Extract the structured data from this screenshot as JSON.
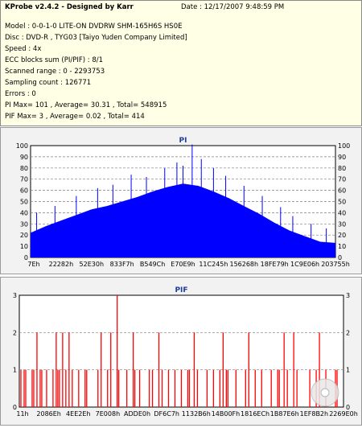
{
  "header": {
    "title": "KProbe v2.4.2 - Designed by Karr",
    "date": "Date : 12/17/2007 9:48:59 PM",
    "lines": [
      "Model : 0-0-1-0 LITE-ON DVDRW SHM-165H6S HS0E",
      "Disc : DVD-R , TYG03 [Taiyo Yuden Company Limited]",
      "Speed : 4x",
      "ECC blocks sum (PI/PIF) : 8/1",
      "Scanned range : 0 - 2293753",
      "Sampling count : 126771",
      "Errors : 0",
      "PI Max= 101 , Average= 30.31 , Total= 548915",
      "PIF Max= 3 , Average= 0.02 , Total= 414"
    ]
  },
  "chart_data": [
    {
      "type": "area",
      "title": "PI",
      "color": "#0000ff",
      "ylim": [
        0,
        100
      ],
      "yticks": [
        0,
        10,
        20,
        30,
        40,
        50,
        60,
        70,
        80,
        90,
        100
      ],
      "xticks": [
        "7Eh",
        "22282h",
        "52E30h",
        "833F7h",
        "B549Ch",
        "E70E9h",
        "11C245h",
        "156268h",
        "18FE79h",
        "1C9E06h",
        "203755h"
      ],
      "grid": true,
      "x": [
        0,
        0.05,
        0.1,
        0.15,
        0.2,
        0.25,
        0.3,
        0.35,
        0.4,
        0.45,
        0.5,
        0.55,
        0.6,
        0.65,
        0.7,
        0.75,
        0.8,
        0.85,
        0.9,
        0.95,
        1.0
      ],
      "values": [
        22,
        28,
        33,
        38,
        43,
        46,
        50,
        54,
        59,
        63,
        66,
        64,
        59,
        53,
        46,
        39,
        31,
        24,
        19,
        14,
        13
      ],
      "peaks": [
        [
          0.02,
          40
        ],
        [
          0.08,
          46
        ],
        [
          0.15,
          55
        ],
        [
          0.22,
          62
        ],
        [
          0.27,
          65
        ],
        [
          0.33,
          74
        ],
        [
          0.38,
          72
        ],
        [
          0.44,
          80
        ],
        [
          0.48,
          85
        ],
        [
          0.5,
          82
        ],
        [
          0.53,
          101
        ],
        [
          0.56,
          88
        ],
        [
          0.6,
          80
        ],
        [
          0.64,
          73
        ],
        [
          0.7,
          64
        ],
        [
          0.76,
          55
        ],
        [
          0.82,
          45
        ],
        [
          0.86,
          37
        ],
        [
          0.92,
          30
        ],
        [
          0.97,
          26
        ]
      ]
    },
    {
      "type": "bar",
      "title": "PIF",
      "color": "#ff0000",
      "ylim": [
        0,
        3
      ],
      "yticks": [
        0,
        1,
        2,
        3
      ],
      "xticks": [
        "11h",
        "2086Eh",
        "4EE2Eh",
        "7E008h",
        "ADDE0h",
        "DF6C7h",
        "1132B6h",
        "14B00Fh",
        "1816ECh",
        "1B87E6h",
        "1EF8B2h",
        "2269E0h"
      ],
      "grid": true,
      "ones": [
        0.0,
        0.01,
        0.015,
        0.035,
        0.04,
        0.06,
        0.065,
        0.08,
        0.1,
        0.115,
        0.12,
        0.14,
        0.16,
        0.18,
        0.2,
        0.205,
        0.24,
        0.27,
        0.3,
        0.305,
        0.33,
        0.355,
        0.37,
        0.4,
        0.41,
        0.44,
        0.46,
        0.48,
        0.5,
        0.52,
        0.525,
        0.55,
        0.58,
        0.6,
        0.62,
        0.64,
        0.645,
        0.67,
        0.7,
        0.73,
        0.75,
        0.78,
        0.8,
        0.805,
        0.83,
        0.86,
        0.9,
        0.92,
        0.95,
        0.98,
        0.985
      ],
      "twos": [
        0.05,
        0.11,
        0.13,
        0.15,
        0.25,
        0.28,
        0.35,
        0.43,
        0.54,
        0.63,
        0.71,
        0.82,
        0.85,
        0.93
      ],
      "threes": [
        0.3
      ]
    }
  ]
}
